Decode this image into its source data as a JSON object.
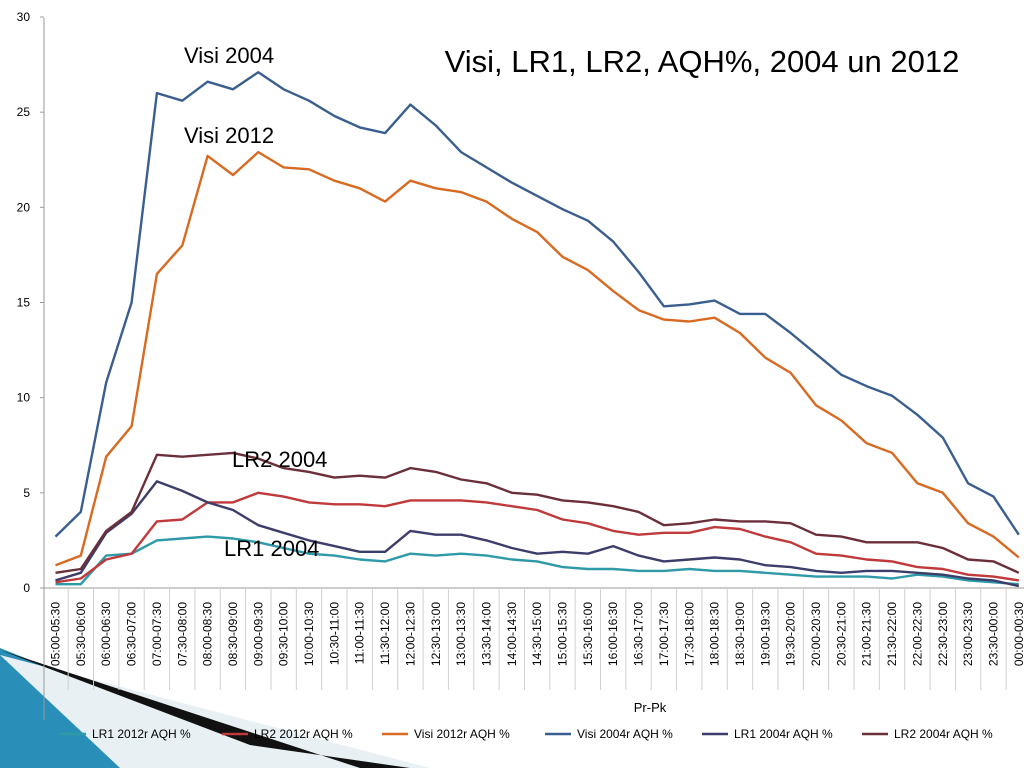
{
  "chart_data": {
    "type": "line",
    "title": "Visi, LR1, LR2, AQH%, 2004 un 2012",
    "xlabel": "Pr-Pk",
    "ylabel": "",
    "ylim": [
      0,
      30
    ],
    "yticks": [
      0,
      5,
      10,
      15,
      20,
      25,
      30
    ],
    "grid": false,
    "legend_position": "bottom",
    "categories": [
      "05:00-05:30",
      "05:30-06:00",
      "06:00-06:30",
      "06:30-07:00",
      "07:00-07:30",
      "07:30-08:00",
      "08:00-08:30",
      "08:30-09:00",
      "09:00-09:30",
      "09:30-10:00",
      "10:00-10:30",
      "10:30-11:00",
      "11:00-11:30",
      "11:30-12:00",
      "12:00-12:30",
      "12:30-13:00",
      "13:00-13:30",
      "13:30-14:00",
      "14:00-14:30",
      "14:30-15:00",
      "15:00-15:30",
      "15:30-16:00",
      "16:00-16:30",
      "16:30-17:00",
      "17:00-17:30",
      "17:30-18:00",
      "18:00-18:30",
      "18:30-19:00",
      "19:00-19:30",
      "19:30-20:00",
      "20:00-20:30",
      "20:30-21:00",
      "21:00-21:30",
      "21:30-22:00",
      "22:00-22:30",
      "22:30-23:00",
      "23:00-23:30",
      "23:30-00:00",
      "00:00-00:30"
    ],
    "series": [
      {
        "name": "LR1 2012r AQH %",
        "color": "#2e9aa8",
        "values": [
          0.2,
          0.2,
          1.7,
          1.8,
          2.5,
          2.6,
          2.7,
          2.6,
          2.4,
          2.1,
          1.8,
          1.7,
          1.5,
          1.4,
          1.8,
          1.7,
          1.8,
          1.7,
          1.5,
          1.4,
          1.1,
          1.0,
          1.0,
          0.9,
          0.9,
          1.0,
          0.9,
          0.9,
          0.8,
          0.7,
          0.6,
          0.6,
          0.6,
          0.5,
          0.7,
          0.6,
          0.4,
          0.3,
          0.2
        ]
      },
      {
        "name": "LR2 2012r AQH %",
        "color": "#c0393b",
        "values": [
          0.3,
          0.5,
          1.5,
          1.8,
          3.5,
          3.6,
          4.5,
          4.5,
          5.0,
          4.8,
          4.5,
          4.4,
          4.4,
          4.3,
          4.6,
          4.6,
          4.6,
          4.5,
          4.3,
          4.1,
          3.6,
          3.4,
          3.0,
          2.8,
          2.9,
          2.9,
          3.2,
          3.1,
          2.7,
          2.4,
          1.8,
          1.7,
          1.5,
          1.4,
          1.1,
          1.0,
          0.7,
          0.6,
          0.4
        ]
      },
      {
        "name": "Visi 2012r AQH %",
        "color": "#d86a22",
        "values": [
          1.2,
          1.7,
          6.9,
          8.5,
          16.5,
          18.0,
          22.7,
          21.7,
          22.9,
          22.1,
          22.0,
          21.4,
          21.0,
          20.3,
          21.4,
          21.0,
          20.8,
          20.3,
          19.4,
          18.7,
          17.4,
          16.7,
          15.6,
          14.6,
          14.1,
          14.0,
          14.2,
          13.4,
          12.1,
          11.3,
          9.6,
          8.8,
          7.6,
          7.1,
          5.5,
          5.0,
          3.4,
          2.7,
          1.6
        ]
      },
      {
        "name": "Visi 2004r AQH %",
        "color": "#3a5f8f",
        "values": [
          2.7,
          4.0,
          10.8,
          15.0,
          26.0,
          25.6,
          26.6,
          26.2,
          27.1,
          26.2,
          25.6,
          24.8,
          24.2,
          23.9,
          25.4,
          24.3,
          22.9,
          22.1,
          21.3,
          20.6,
          19.9,
          19.3,
          18.2,
          16.6,
          14.8,
          14.9,
          15.1,
          14.4,
          14.4,
          13.4,
          12.3,
          11.2,
          10.6,
          10.1,
          9.1,
          7.9,
          5.5,
          4.8,
          2.8
        ]
      },
      {
        "name": "LR1 2004r AQH %",
        "color": "#3d3d6b",
        "values": [
          0.4,
          0.8,
          2.9,
          3.9,
          5.6,
          5.1,
          4.5,
          4.1,
          3.3,
          2.9,
          2.5,
          2.2,
          1.9,
          1.9,
          3.0,
          2.8,
          2.8,
          2.5,
          2.1,
          1.8,
          1.9,
          1.8,
          2.2,
          1.7,
          1.4,
          1.5,
          1.6,
          1.5,
          1.2,
          1.1,
          0.9,
          0.8,
          0.9,
          0.9,
          0.8,
          0.7,
          0.5,
          0.4,
          0.1
        ]
      },
      {
        "name": "LR2 2004r AQH %",
        "color": "#6b2f3a",
        "values": [
          0.8,
          1.0,
          3.0,
          4.0,
          7.0,
          6.9,
          7.0,
          7.1,
          6.8,
          6.3,
          6.1,
          5.8,
          5.9,
          5.8,
          6.3,
          6.1,
          5.7,
          5.5,
          5.0,
          4.9,
          4.6,
          4.5,
          4.3,
          4.0,
          3.3,
          3.4,
          3.6,
          3.5,
          3.5,
          3.4,
          2.8,
          2.7,
          2.4,
          2.4,
          2.4,
          2.1,
          1.5,
          1.4,
          0.8
        ]
      }
    ],
    "annotations": [
      "Visi 2004",
      "Visi 2012",
      "LR2 2004",
      "LR1 2004"
    ]
  }
}
